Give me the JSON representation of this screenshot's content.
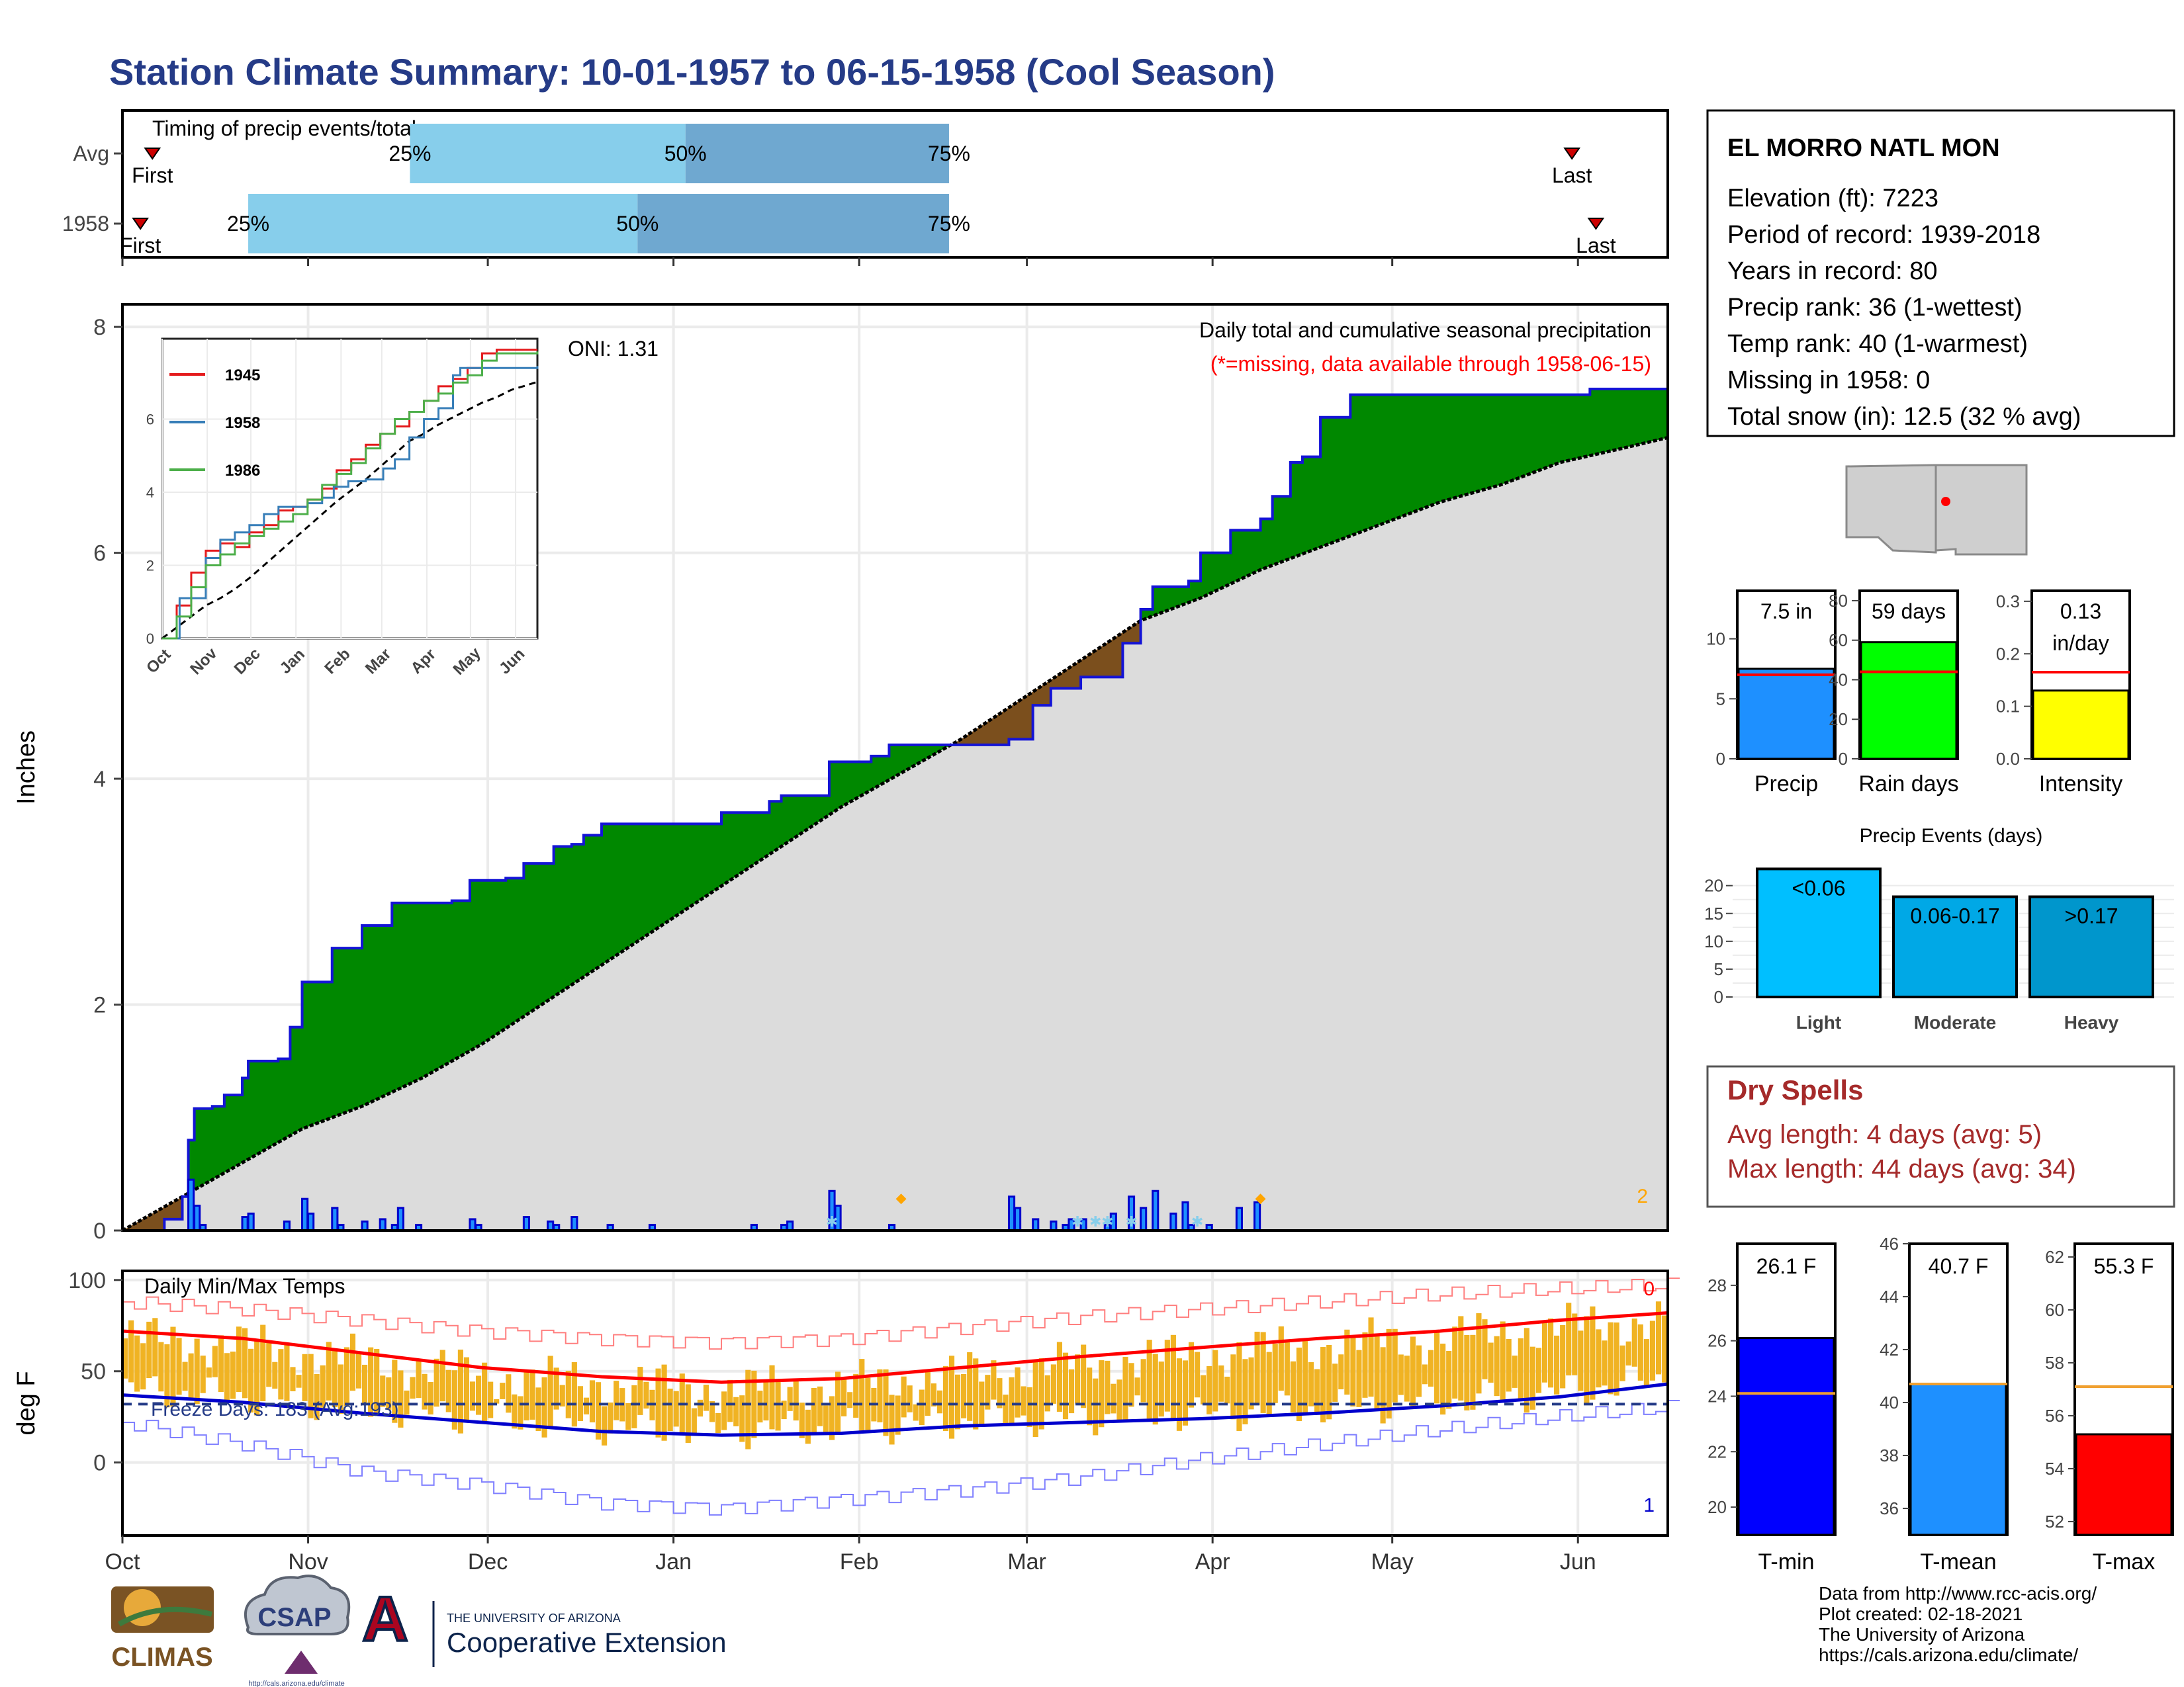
{
  "page": {
    "title": "Station Climate Summary: 10-01-1957 to 06-15-1958 (Cool Season)",
    "months": [
      "Oct",
      "Nov",
      "Dec",
      "Jan",
      "Feb",
      "Mar",
      "Apr",
      "May",
      "Jun"
    ]
  },
  "timing": {
    "title": "Timing of precip events/totals",
    "rows": [
      {
        "label": "Avg",
        "first_day": 5,
        "last_day": 242,
        "q25": 48,
        "q50": 94,
        "q75": 138,
        "first_label": "First",
        "last_label": "Last"
      },
      {
        "label": "1958",
        "first_day": 3,
        "last_day": 246,
        "q25": 21,
        "q50": 86,
        "q75": 138,
        "first_label": "First",
        "last_label": "Last"
      }
    ],
    "q_labels": [
      "25%",
      "50%",
      "75%"
    ]
  },
  "precip": {
    "header": "Daily total and cumulative seasonal precipitation",
    "missing_note": "(*=missing, data available through 1958-06-15)",
    "oni": "ONI: 1.31",
    "ylabel": "Inches",
    "y_ticks": [
      "0",
      "2",
      "4",
      "6",
      "8"
    ],
    "corner_count": "2",
    "ylim": [
      0,
      8.2
    ],
    "xlim_days": [
      0,
      258
    ],
    "cumulative_steps": [
      [
        0,
        0
      ],
      [
        7,
        0.1
      ],
      [
        10,
        0.3
      ],
      [
        11,
        0.8
      ],
      [
        12,
        1.08
      ],
      [
        15,
        1.1
      ],
      [
        17,
        1.2
      ],
      [
        20,
        1.35
      ],
      [
        21,
        1.5
      ],
      [
        26,
        1.52
      ],
      [
        28,
        1.8
      ],
      [
        30,
        2.2
      ],
      [
        35,
        2.5
      ],
      [
        40,
        2.7
      ],
      [
        45,
        2.9
      ],
      [
        55,
        2.92
      ],
      [
        58,
        3.1
      ],
      [
        64,
        3.12
      ],
      [
        67,
        3.25
      ],
      [
        72,
        3.4
      ],
      [
        75,
        3.42
      ],
      [
        77,
        3.5
      ],
      [
        80,
        3.6
      ],
      [
        90,
        3.6
      ],
      [
        100,
        3.7
      ],
      [
        108,
        3.8
      ],
      [
        110,
        3.85
      ],
      [
        118,
        4.15
      ],
      [
        125,
        4.2
      ],
      [
        128,
        4.3
      ],
      [
        140,
        4.3
      ],
      [
        148,
        4.35
      ],
      [
        152,
        4.65
      ],
      [
        155,
        4.8
      ],
      [
        160,
        4.9
      ],
      [
        167,
        5.2
      ],
      [
        170,
        5.5
      ],
      [
        172,
        5.7
      ],
      [
        178,
        5.75
      ],
      [
        180,
        6.0
      ],
      [
        185,
        6.2
      ],
      [
        190,
        6.3
      ],
      [
        192,
        6.5
      ],
      [
        195,
        6.8
      ],
      [
        197,
        6.85
      ],
      [
        200,
        7.2
      ],
      [
        205,
        7.4
      ],
      [
        230,
        7.4
      ],
      [
        245,
        7.45
      ],
      [
        258,
        7.45
      ]
    ],
    "avg_cumulative": [
      [
        0,
        0
      ],
      [
        10,
        0.3
      ],
      [
        20,
        0.6
      ],
      [
        30,
        0.9
      ],
      [
        40,
        1.1
      ],
      [
        50,
        1.35
      ],
      [
        60,
        1.65
      ],
      [
        70,
        2.0
      ],
      [
        80,
        2.35
      ],
      [
        90,
        2.7
      ],
      [
        100,
        3.05
      ],
      [
        110,
        3.4
      ],
      [
        120,
        3.75
      ],
      [
        130,
        4.05
      ],
      [
        140,
        4.35
      ],
      [
        150,
        4.7
      ],
      [
        160,
        5.05
      ],
      [
        170,
        5.4
      ],
      [
        180,
        5.6
      ],
      [
        190,
        5.85
      ],
      [
        200,
        6.05
      ],
      [
        210,
        6.25
      ],
      [
        220,
        6.45
      ],
      [
        230,
        6.6
      ],
      [
        240,
        6.8
      ],
      [
        250,
        6.92
      ],
      [
        258,
        7.02
      ]
    ],
    "daily": [
      [
        11,
        0.45
      ],
      [
        12,
        0.22
      ],
      [
        13,
        0.05
      ],
      [
        20,
        0.12
      ],
      [
        21,
        0.15
      ],
      [
        27,
        0.08
      ],
      [
        30,
        0.28
      ],
      [
        31,
        0.15
      ],
      [
        35,
        0.2
      ],
      [
        36,
        0.05
      ],
      [
        40,
        0.08
      ],
      [
        43,
        0.1
      ],
      [
        45,
        0.05
      ],
      [
        46,
        0.2
      ],
      [
        49,
        0.05
      ],
      [
        58,
        0.1
      ],
      [
        59,
        0.05
      ],
      [
        67,
        0.12
      ],
      [
        71,
        0.08
      ],
      [
        72,
        0.05
      ],
      [
        75,
        0.12
      ],
      [
        81,
        0.05
      ],
      [
        88,
        0.05
      ],
      [
        105,
        0.05
      ],
      [
        110,
        0.05
      ],
      [
        111,
        0.08
      ],
      [
        118,
        0.35
      ],
      [
        119,
        0.22
      ],
      [
        128,
        0.05
      ],
      [
        148,
        0.3
      ],
      [
        149,
        0.2
      ],
      [
        152,
        0.1
      ],
      [
        155,
        0.08
      ],
      [
        157,
        0.05
      ],
      [
        158,
        0.1
      ],
      [
        160,
        0.1
      ],
      [
        164,
        0.05
      ],
      [
        165,
        0.15
      ],
      [
        168,
        0.3
      ],
      [
        170,
        0.2
      ],
      [
        172,
        0.35
      ],
      [
        175,
        0.15
      ],
      [
        177,
        0.25
      ],
      [
        178,
        0.05
      ],
      [
        181,
        0.05
      ],
      [
        186,
        0.2
      ],
      [
        189,
        0.25
      ]
    ],
    "missing_days": [
      118,
      159,
      162,
      164,
      168,
      179
    ],
    "snow_days": [
      130,
      190
    ]
  },
  "inset": {
    "ticks_y": [
      "0",
      "2",
      "4",
      "6"
    ],
    "months": [
      "Oct",
      "Nov",
      "Dec",
      "Jan",
      "Feb",
      "Mar",
      "Apr",
      "May",
      "Jun"
    ],
    "series": [
      {
        "name": "1945",
        "color": "#e41a1c",
        "points": [
          [
            0,
            0
          ],
          [
            10,
            0.9
          ],
          [
            20,
            1.8
          ],
          [
            30,
            2.4
          ],
          [
            40,
            2.6
          ],
          [
            50,
            2.5
          ],
          [
            60,
            2.9
          ],
          [
            70,
            3.1
          ],
          [
            80,
            3.5
          ],
          [
            90,
            3.6
          ],
          [
            100,
            3.8
          ],
          [
            110,
            4.1
          ],
          [
            120,
            4.6
          ],
          [
            130,
            4.9
          ],
          [
            140,
            5.3
          ],
          [
            150,
            5.6
          ],
          [
            160,
            5.8
          ],
          [
            170,
            6.2
          ],
          [
            180,
            6.5
          ],
          [
            190,
            6.9
          ],
          [
            200,
            7.1
          ],
          [
            210,
            7.4
          ],
          [
            220,
            7.8
          ],
          [
            230,
            7.9
          ],
          [
            240,
            7.9
          ],
          [
            258,
            7.9
          ]
        ]
      },
      {
        "name": "1958",
        "color": "#377eb8",
        "points": [
          [
            0,
            0
          ],
          [
            12,
            1.1
          ],
          [
            30,
            2.2
          ],
          [
            40,
            2.7
          ],
          [
            50,
            2.9
          ],
          [
            60,
            3.1
          ],
          [
            70,
            3.4
          ],
          [
            80,
            3.6
          ],
          [
            100,
            3.7
          ],
          [
            110,
            3.85
          ],
          [
            118,
            4.15
          ],
          [
            128,
            4.3
          ],
          [
            140,
            4.35
          ],
          [
            152,
            4.65
          ],
          [
            160,
            4.9
          ],
          [
            170,
            5.5
          ],
          [
            180,
            6.0
          ],
          [
            190,
            6.3
          ],
          [
            200,
            7.2
          ],
          [
            205,
            7.4
          ],
          [
            258,
            7.45
          ]
        ]
      },
      {
        "name": "1986",
        "color": "#4daf4a",
        "points": [
          [
            0,
            0
          ],
          [
            10,
            0.6
          ],
          [
            20,
            1.4
          ],
          [
            30,
            2.0
          ],
          [
            40,
            2.3
          ],
          [
            50,
            2.6
          ],
          [
            60,
            2.8
          ],
          [
            70,
            3.0
          ],
          [
            80,
            3.2
          ],
          [
            90,
            3.4
          ],
          [
            100,
            3.8
          ],
          [
            110,
            4.2
          ],
          [
            120,
            4.5
          ],
          [
            130,
            4.8
          ],
          [
            140,
            5.2
          ],
          [
            150,
            5.6
          ],
          [
            160,
            6.0
          ],
          [
            170,
            6.2
          ],
          [
            180,
            6.5
          ],
          [
            190,
            6.7
          ],
          [
            200,
            7.0
          ],
          [
            210,
            7.2
          ],
          [
            220,
            7.6
          ],
          [
            230,
            7.8
          ],
          [
            258,
            7.85
          ]
        ]
      }
    ]
  },
  "temps": {
    "title": "Daily Min/Max Temps",
    "ylabel": "deg F",
    "y_ticks": [
      "0",
      "50",
      "100"
    ],
    "ylim": [
      -40,
      105
    ],
    "freeze_line": 32,
    "freeze_label": "Freeze Days: 183 (Avg:193)",
    "corner_top": "0",
    "corner_bottom": "1",
    "avg_max": [
      [
        0,
        72
      ],
      [
        20,
        68
      ],
      [
        40,
        60
      ],
      [
        60,
        52
      ],
      [
        80,
        47
      ],
      [
        100,
        44
      ],
      [
        120,
        46
      ],
      [
        140,
        52
      ],
      [
        160,
        58
      ],
      [
        180,
        63
      ],
      [
        200,
        68
      ],
      [
        220,
        72
      ],
      [
        240,
        78
      ],
      [
        258,
        82
      ]
    ],
    "avg_min": [
      [
        0,
        37
      ],
      [
        20,
        33
      ],
      [
        40,
        27
      ],
      [
        60,
        22
      ],
      [
        80,
        17
      ],
      [
        100,
        15
      ],
      [
        120,
        16
      ],
      [
        140,
        20
      ],
      [
        160,
        22
      ],
      [
        180,
        24
      ],
      [
        200,
        27
      ],
      [
        220,
        31
      ],
      [
        240,
        36
      ],
      [
        258,
        43
      ]
    ],
    "record_max": [
      [
        0,
        88
      ],
      [
        20,
        84
      ],
      [
        40,
        78
      ],
      [
        60,
        72
      ],
      [
        80,
        68
      ],
      [
        100,
        66
      ],
      [
        120,
        68
      ],
      [
        140,
        74
      ],
      [
        160,
        80
      ],
      [
        180,
        84
      ],
      [
        200,
        88
      ],
      [
        220,
        92
      ],
      [
        240,
        95
      ],
      [
        258,
        97
      ]
    ],
    "record_min": [
      [
        0,
        22
      ],
      [
        20,
        10
      ],
      [
        40,
        -5
      ],
      [
        60,
        -12
      ],
      [
        80,
        -22
      ],
      [
        100,
        -25
      ],
      [
        120,
        -20
      ],
      [
        140,
        -15
      ],
      [
        160,
        -8
      ],
      [
        180,
        2
      ],
      [
        200,
        10
      ],
      [
        220,
        18
      ],
      [
        240,
        25
      ],
      [
        258,
        30
      ]
    ]
  },
  "station": {
    "name": "EL MORRO NATL MON",
    "lines": [
      "Elevation (ft): 7223",
      "Period of record: 1939-2018",
      "Years in record: 80",
      "Precip rank: 36 (1-wettest)",
      "Temp rank: 40 (1-warmest)",
      "Missing in 1958: 0",
      "Total snow (in): 12.5 (32 % avg)"
    ]
  },
  "map": {
    "marker": "station-location"
  },
  "summary_bars": [
    {
      "label": "Precip",
      "value_text": "7.5 in",
      "value": 7.5,
      "avg": 7.0,
      "ymax": 14,
      "ticks": [
        "0",
        "5",
        "10"
      ],
      "tick_values": [
        0,
        5,
        10
      ],
      "color": "#1e90ff"
    },
    {
      "label": "Rain days",
      "value_text": "59 days",
      "value": 59,
      "avg": 44,
      "ymax": 85,
      "ticks": [
        "0",
        "20",
        "40",
        "60",
        "80"
      ],
      "tick_values": [
        0,
        20,
        40,
        60,
        80
      ],
      "color": "#00ff00"
    },
    {
      "label": "Intensity",
      "value_text": "0.13 in/day",
      "value": 0.13,
      "avg": 0.165,
      "ymax": 0.32,
      "ticks": [
        "0.0",
        "0.1",
        "0.2",
        "0.3"
      ],
      "tick_values": [
        0,
        0.1,
        0.2,
        0.3
      ],
      "color": "#ffff00"
    }
  ],
  "events": {
    "title": "Precip Events (days)",
    "y_ticks": [
      "0",
      "5",
      "10",
      "15",
      "20"
    ],
    "ymax": 24,
    "bars": [
      {
        "category": "Light",
        "range": "<0.06",
        "value": 23,
        "color": "#00bfff"
      },
      {
        "category": "Moderate",
        "range": "0.06-0.17",
        "value": 18,
        "color": "#00a8e6"
      },
      {
        "category": "Heavy",
        "range": ">0.17",
        "value": 18,
        "color": "#0096cc"
      }
    ]
  },
  "dry_spells": {
    "title": "Dry Spells",
    "avg_line": "Avg length: 4 days (avg: 5)",
    "max_line": "Max length: 44 days (avg: 34)"
  },
  "temp_bars": [
    {
      "label": "T-min",
      "value_text": "26.1 F",
      "value": 26.1,
      "avg": 24.1,
      "ymin": 19,
      "ymax": 29.5,
      "ticks": [
        "20",
        "22",
        "24",
        "26",
        "28"
      ],
      "tick_values": [
        20,
        22,
        24,
        26,
        28
      ],
      "color": "#0000ff"
    },
    {
      "label": "T-mean",
      "value_text": "40.7 F",
      "value": 40.7,
      "avg": 40.7,
      "ymin": 35,
      "ymax": 46,
      "ticks": [
        "36",
        "38",
        "40",
        "42",
        "44",
        "46"
      ],
      "tick_values": [
        36,
        38,
        40,
        42,
        44,
        46
      ],
      "color": "#1e90ff"
    },
    {
      "label": "T-max",
      "value_text": "55.3 F",
      "value": 55.3,
      "avg": 57.1,
      "ymin": 51.5,
      "ymax": 62.5,
      "ticks": [
        "52",
        "54",
        "56",
        "58",
        "60",
        "62"
      ],
      "tick_values": [
        52,
        54,
        56,
        58,
        60,
        62
      ],
      "color": "#ff0000"
    }
  ],
  "footer": {
    "credits": [
      "Data from http://www.rcc-acis.org/",
      "Plot created: 02-18-2021",
      "The University of Arizona",
      "https://cals.arizona.edu/climate/"
    ],
    "logo_climas": "CLIMAS",
    "logo_csap": "CSAP",
    "logo_csap_url": "http://cals.arizona.edu/climate",
    "logo_ua_line1": "THE UNIVERSITY OF ARIZONA",
    "logo_ua_line2": "Cooperative Extension"
  }
}
